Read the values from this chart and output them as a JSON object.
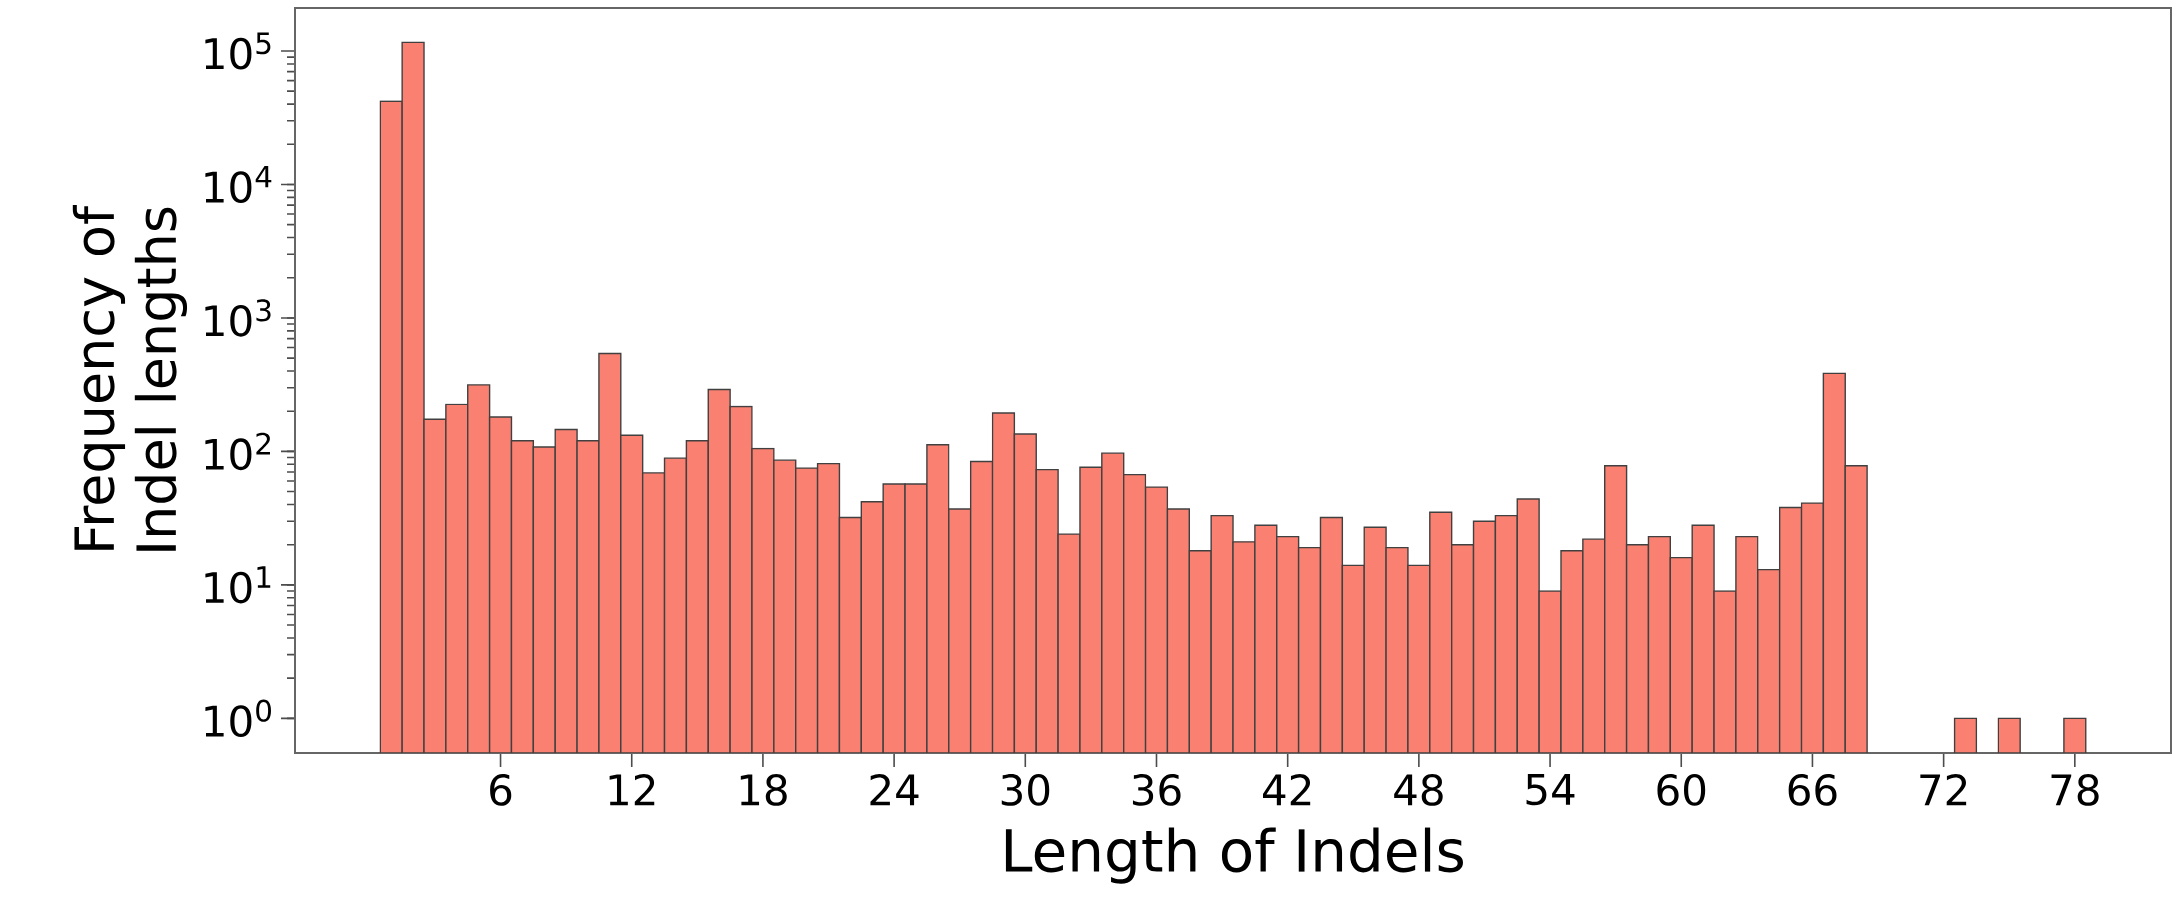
{
  "chart_data": {
    "type": "histogram",
    "xlabel": "Length of Indels",
    "ylabel": "Frequency of Indel lengths",
    "bins": [
      0.5,
      1.5,
      2.5,
      3.5,
      4.5,
      5.5,
      6.5,
      7.5,
      8.5,
      9.5,
      10.5,
      11.5,
      12.5,
      13.5,
      14.5,
      15.5,
      16.5,
      17.5,
      18.5,
      19.5,
      20.5,
      21.5,
      22.5,
      23.5,
      24.5,
      25.5,
      26.5,
      27.5,
      28.5,
      29.5,
      30.5,
      31.5,
      32.5,
      33.5,
      34.5,
      35.5,
      36.5,
      37.5,
      38.5,
      39.5,
      40.5,
      41.5,
      42.5,
      43.5,
      44.5,
      45.5,
      46.5,
      47.5,
      48.5,
      49.5,
      50.5,
      51.5,
      52.5,
      53.5,
      54.5,
      55.5,
      56.5,
      57.5,
      58.5,
      59.5,
      60.5,
      61.5,
      62.5,
      63.5,
      64.5,
      65.5,
      66.5,
      67.5,
      68.5,
      69.5,
      70.5,
      71.5,
      72.5,
      73.5,
      74.5,
      75.5,
      76.5,
      77.5,
      78.5
    ],
    "values": [
      42000,
      116000,
      174,
      225,
      315,
      181,
      120,
      108,
      146,
      120,
      542,
      132,
      69,
      89,
      120,
      291,
      217,
      105,
      86,
      75,
      81,
      32,
      42,
      57,
      57,
      112,
      37,
      84,
      194,
      135,
      73,
      24,
      76,
      97,
      67,
      54,
      37,
      18,
      33,
      21,
      28,
      23,
      19,
      32,
      14,
      27,
      19,
      14,
      35,
      20,
      30,
      33,
      44,
      9,
      18,
      22,
      78,
      20,
      23,
      16,
      28,
      9,
      23,
      13,
      38,
      41,
      384,
      78,
      null,
      null,
      null,
      null,
      1,
      null,
      1,
      null,
      null,
      1
    ],
    "color": "#fa8072",
    "log": "y",
    "xlim": [
      -3.4,
      82.4
    ],
    "ylim": [
      0.55,
      210000
    ],
    "xticks": [
      6,
      12,
      18,
      24,
      30,
      36,
      42,
      48,
      54,
      60,
      66,
      72,
      78
    ],
    "yticks": [
      {
        "value": 1,
        "label": "10$^{0}$"
      },
      {
        "value": 10,
        "label": "10$^{1}$"
      },
      {
        "value": 100,
        "label": "10$^{2}$"
      },
      {
        "value": 1000,
        "label": "10$^{3}$"
      },
      {
        "value": 10000,
        "label": "10$^{4}$"
      },
      {
        "value": 100000,
        "label": "10$^{5}$"
      }
    ]
  }
}
